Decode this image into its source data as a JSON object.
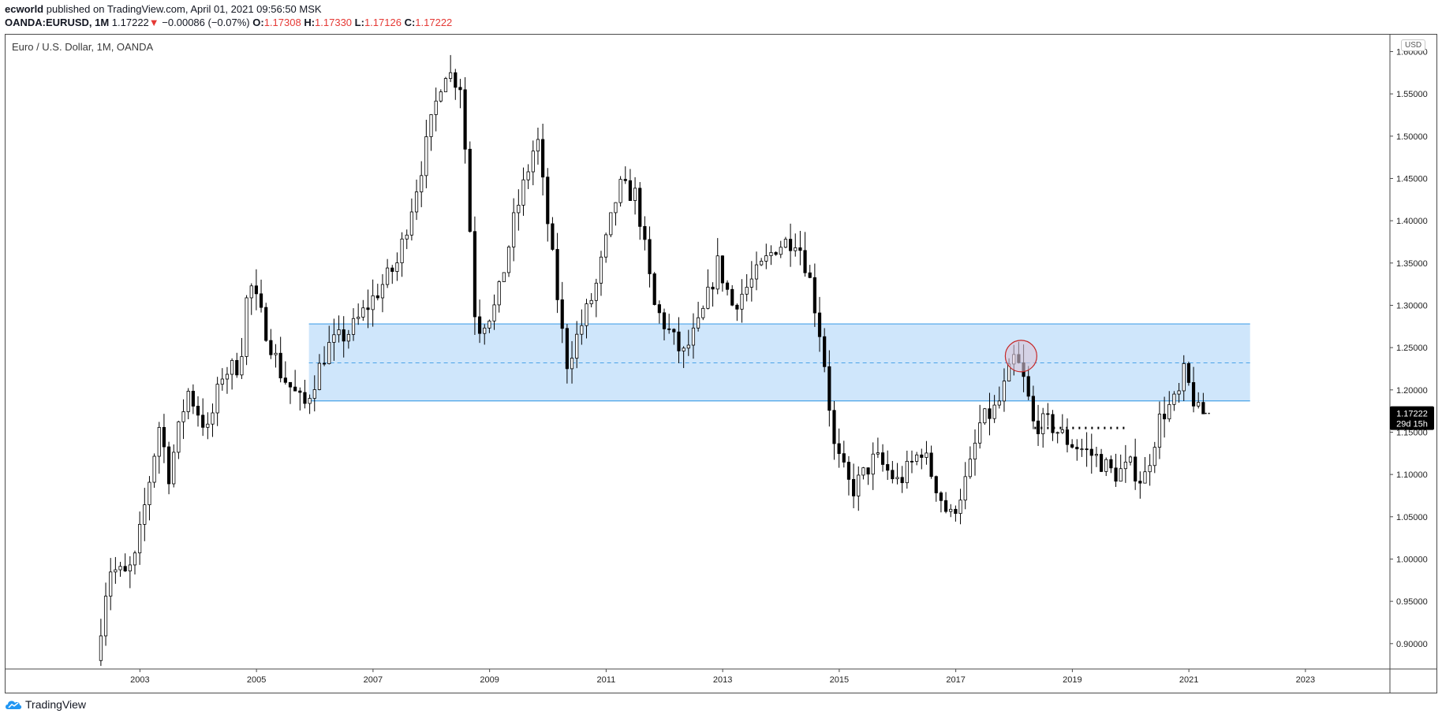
{
  "header": {
    "author": "ecworld",
    "published": " published on TradingView.com, April 01, 2021 09:56:50 MSK",
    "symbol": "OANDA:EURUSD, 1M",
    "price": "1.17222",
    "change_arrow": "▼",
    "change": "−0.00086 (−0.07%)",
    "o_label": "O:",
    "o_value": "1.17308",
    "h_label": "H:",
    "h_value": "1.17330",
    "l_label": "L:",
    "l_value": "1.17126",
    "c_label": "C:",
    "c_value": "1.17222"
  },
  "chart_title": "Euro / U.S. Dollar, 1M, OANDA",
  "currency_badge": "USD",
  "brand": "TradingView",
  "colors": {
    "candle": "#000000",
    "zone_fill": "#cfe6fb",
    "zone_line": "#4aa3e8",
    "circle_stroke": "#c62828",
    "circle_fill": "#d8c4d8",
    "last_price_bg": "#000000",
    "down_arrow": "#e53935"
  },
  "chart_data": {
    "type": "candlestick",
    "title": "Euro / U.S. Dollar, 1M, OANDA",
    "ylim": [
      0.87,
      1.62
    ],
    "y_ticks": [
      "1.60000",
      "1.55000",
      "1.50000",
      "1.45000",
      "1.40000",
      "1.35000",
      "1.30000",
      "1.25000",
      "1.20000",
      "1.15000",
      "1.10000",
      "1.05000",
      "1.00000",
      "0.95000",
      "0.90000"
    ],
    "x_ticks": [
      "2003",
      "2005",
      "2007",
      "2009",
      "2011",
      "2013",
      "2015",
      "2017",
      "2019",
      "2021",
      "2023"
    ],
    "xlim_year": [
      2000.68,
      2024.45
    ],
    "last_price": "1.17222",
    "countdown": "29d 15h",
    "zone": {
      "x_start": 2005.9,
      "x_end": 2022.05,
      "top": 1.278,
      "bottom": 1.187,
      "mid": 1.232
    },
    "circle": {
      "x": 2018.12,
      "y": 1.24
    },
    "dotted_line": {
      "x_start": 2018.35,
      "x_end": 2019.95,
      "y": 1.155
    },
    "anchors": [
      [
        2002.33,
        0.88
      ],
      [
        2002.55,
        0.99
      ],
      [
        2002.85,
        0.98
      ],
      [
        2003.0,
        1.0
      ],
      [
        2003.42,
        1.16
      ],
      [
        2003.58,
        1.1
      ],
      [
        2003.9,
        1.2
      ],
      [
        2004.25,
        1.15
      ],
      [
        2004.5,
        1.22
      ],
      [
        2004.8,
        1.23
      ],
      [
        2004.95,
        1.33
      ],
      [
        2005.1,
        1.3
      ],
      [
        2005.5,
        1.22
      ],
      [
        2005.9,
        1.18
      ],
      [
        2006.3,
        1.25
      ],
      [
        2006.7,
        1.27
      ],
      [
        2007.0,
        1.3
      ],
      [
        2007.5,
        1.35
      ],
      [
        2007.9,
        1.46
      ],
      [
        2008.3,
        1.58
      ],
      [
        2008.6,
        1.56
      ],
      [
        2008.85,
        1.27
      ],
      [
        2009.2,
        1.3
      ],
      [
        2009.5,
        1.4
      ],
      [
        2009.9,
        1.5
      ],
      [
        2010.0,
        1.44
      ],
      [
        2010.4,
        1.23
      ],
      [
        2010.9,
        1.32
      ],
      [
        2011.3,
        1.44
      ],
      [
        2011.6,
        1.43
      ],
      [
        2011.9,
        1.3
      ],
      [
        2012.4,
        1.24
      ],
      [
        2012.7,
        1.28
      ],
      [
        2013.0,
        1.35
      ],
      [
        2013.25,
        1.3
      ],
      [
        2013.6,
        1.33
      ],
      [
        2014.0,
        1.37
      ],
      [
        2014.35,
        1.38
      ],
      [
        2014.55,
        1.34
      ],
      [
        2014.8,
        1.25
      ],
      [
        2015.0,
        1.13
      ],
      [
        2015.3,
        1.08
      ],
      [
        2015.7,
        1.12
      ],
      [
        2016.1,
        1.09
      ],
      [
        2016.5,
        1.13
      ],
      [
        2016.9,
        1.06
      ],
      [
        2017.0,
        1.05
      ],
      [
        2017.3,
        1.1
      ],
      [
        2017.5,
        1.16
      ],
      [
        2017.8,
        1.18
      ],
      [
        2018.1,
        1.24
      ],
      [
        2018.3,
        1.2
      ],
      [
        2018.4,
        1.16
      ],
      [
        2018.7,
        1.16
      ],
      [
        2019.0,
        1.14
      ],
      [
        2019.5,
        1.12
      ],
      [
        2019.8,
        1.1
      ],
      [
        2020.1,
        1.11
      ],
      [
        2020.3,
        1.09
      ],
      [
        2020.6,
        1.17
      ],
      [
        2020.9,
        1.19
      ],
      [
        2021.0,
        1.22
      ],
      [
        2021.25,
        1.17222
      ]
    ]
  }
}
